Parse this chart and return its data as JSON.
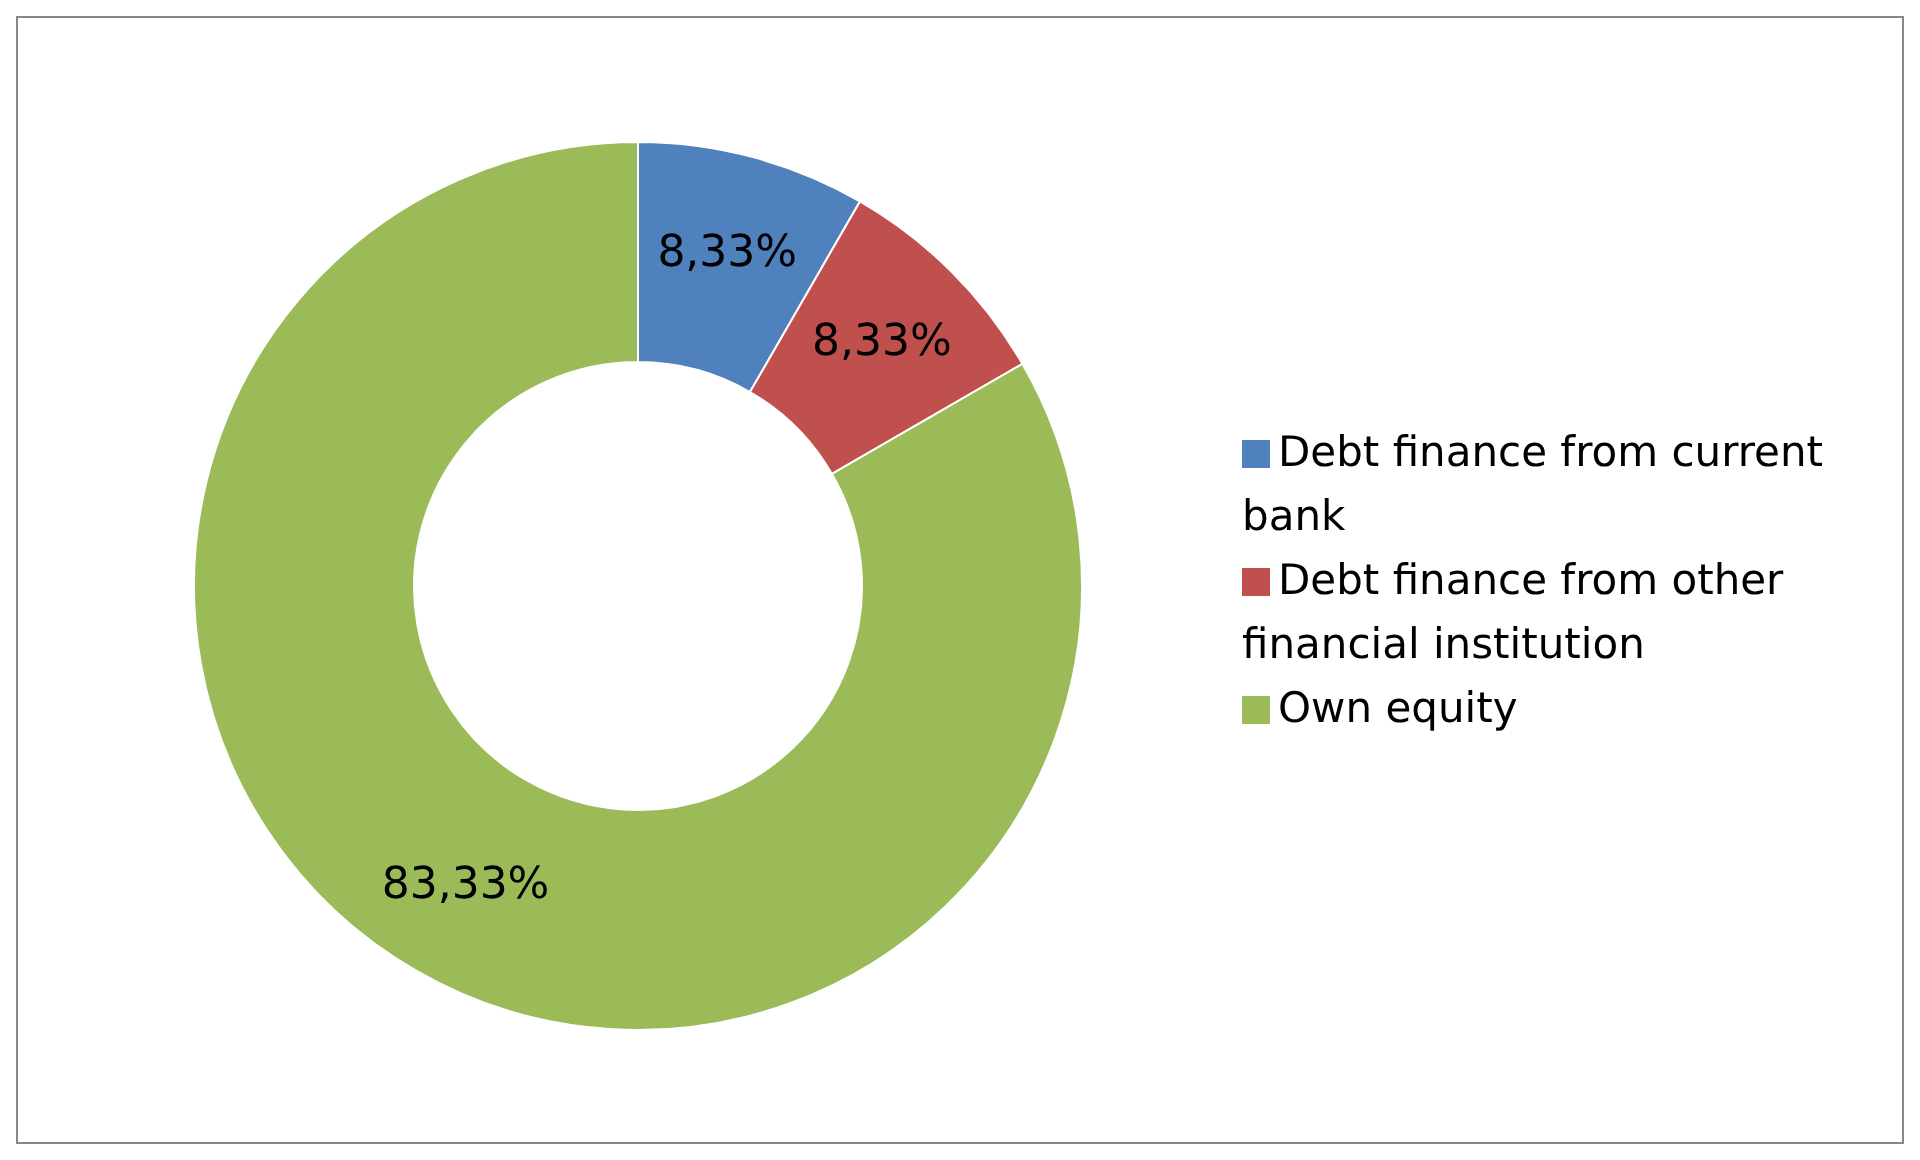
{
  "chart_data": {
    "type": "donut",
    "categories": [
      "Debt finance from current bank",
      "Debt finance from other financial institution",
      "Own equity"
    ],
    "values": [
      8.33,
      8.33,
      83.33
    ],
    "value_labels": [
      "8,33%",
      "8,33%",
      "83,33%"
    ],
    "colors": [
      "#4f81bd",
      "#c0504d",
      "#9bbb59"
    ],
    "legend": "right"
  }
}
